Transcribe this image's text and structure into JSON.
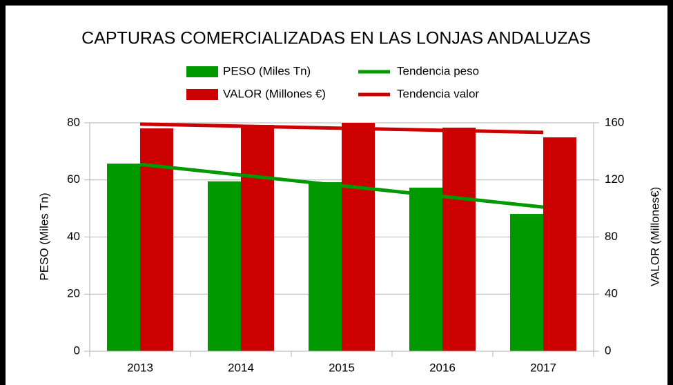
{
  "chart_data": {
    "type": "bar",
    "title": "CAPTURAS COMERCIALIZADAS EN LAS LONJAS ANDALUZAS",
    "categories": [
      "2013",
      "2014",
      "2015",
      "2016",
      "2017"
    ],
    "series": [
      {
        "name": "PESO (Miles Tn)",
        "color": "#009900",
        "values": [
          65.7,
          59.5,
          59.2,
          57.3,
          48.1
        ]
      },
      {
        "name": "VALOR (Millones €)",
        "color": "#cc0000",
        "axis": "y2",
        "values": [
          156.1,
          158.5,
          160,
          156.6,
          149.8
        ]
      },
      {
        "name": "Tendencia peso",
        "color": "#009900",
        "type": "line",
        "values": [
          65.44,
          61.7,
          57.96,
          54.22,
          50.48
        ]
      },
      {
        "name": "Tendencia valor",
        "color": "#cc0000",
        "type": "line",
        "axis": "y2",
        "values": [
          159.1,
          157.65,
          156.2,
          154.75,
          153.3
        ]
      }
    ],
    "ylabel": "PESO (Miles Tn)",
    "y2label": "VALOR (Millones€)",
    "ylim": [
      0,
      80
    ],
    "yticks": [
      0,
      20,
      40,
      60,
      80
    ],
    "y2lim": [
      0,
      160
    ],
    "y2ticks": [
      0,
      40,
      80,
      120,
      160
    ],
    "grid": true
  }
}
